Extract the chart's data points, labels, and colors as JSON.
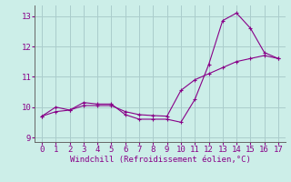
{
  "line1_x": [
    0,
    1,
    2,
    3,
    4,
    5,
    6,
    7,
    8,
    9,
    10,
    11,
    12,
    13,
    14,
    15,
    16,
    17
  ],
  "line1_y": [
    9.7,
    10.0,
    9.9,
    10.15,
    10.1,
    10.1,
    9.75,
    9.6,
    9.6,
    9.6,
    9.5,
    10.25,
    11.4,
    12.85,
    13.1,
    12.6,
    11.8,
    11.6
  ],
  "line2_x": [
    0,
    1,
    2,
    3,
    4,
    5,
    6,
    7,
    8,
    9,
    10,
    11,
    12,
    13,
    14,
    15,
    16,
    17
  ],
  "line2_y": [
    9.7,
    9.85,
    9.9,
    10.05,
    10.05,
    10.05,
    9.85,
    9.75,
    9.72,
    9.7,
    10.55,
    10.9,
    11.1,
    11.3,
    11.5,
    11.6,
    11.7,
    11.6
  ],
  "line_color": "#880088",
  "bg_color": "#cceee8",
  "grid_color": "#aacccc",
  "xlabel": "Windchill (Refroidissement éolien,°C)",
  "ylim": [
    8.85,
    13.35
  ],
  "xlim": [
    -0.5,
    17.5
  ],
  "yticks": [
    9,
    10,
    11,
    12,
    13
  ],
  "xticks": [
    0,
    1,
    2,
    3,
    4,
    5,
    6,
    7,
    8,
    9,
    10,
    11,
    12,
    13,
    14,
    15,
    16,
    17
  ],
  "marker": "+",
  "markersize": 3,
  "linewidth": 0.8,
  "label_fontsize": 6.5,
  "tick_fontsize": 6.5
}
